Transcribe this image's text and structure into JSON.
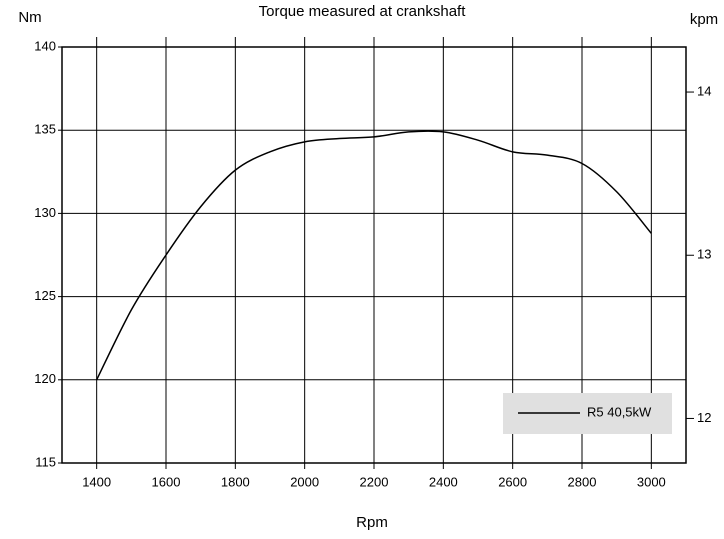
{
  "chart_data": {
    "type": "line",
    "title": "Torque measured at crankshaft",
    "ylabel": "Nm",
    "y2label": "kpm",
    "xlabel": "Rpm",
    "x": [
      1400,
      1500,
      1600,
      1700,
      1800,
      1900,
      2000,
      2100,
      2200,
      2300,
      2400,
      2500,
      2600,
      2700,
      2800,
      2900,
      3000
    ],
    "series": [
      {
        "name": "R5 40,5kW",
        "color": "#000000",
        "values": [
          120,
          124.2,
          127.5,
          130.4,
          132.6,
          133.7,
          134.3,
          134.5,
          134.6,
          134.9,
          134.9,
          134.4,
          133.7,
          133.5,
          133.0,
          131.3,
          128.8
        ]
      }
    ],
    "xlim": [
      1300,
      3100
    ],
    "xticks": [
      1400,
      1600,
      1800,
      2000,
      2200,
      2400,
      2600,
      2800,
      3000
    ],
    "ylim": [
      115,
      140
    ],
    "yticks": [
      115,
      120,
      125,
      130,
      135,
      140
    ],
    "y2lim": [
      11.727,
      14.276
    ],
    "y2ticks": [
      12,
      13,
      14
    ],
    "grid": true,
    "legend": "lower right"
  }
}
